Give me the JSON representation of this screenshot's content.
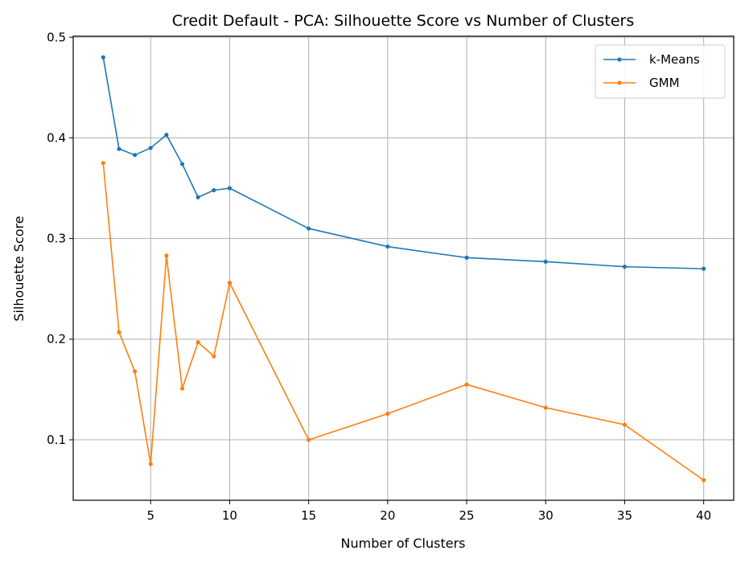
{
  "chart_data": {
    "type": "line",
    "title": "Credit Default - PCA: Silhouette Score vs Number of Clusters",
    "xlabel": "Number of Clusters",
    "ylabel": "Silhouette Score",
    "x": [
      2,
      3,
      4,
      5,
      6,
      7,
      8,
      9,
      10,
      15,
      20,
      25,
      30,
      35,
      40
    ],
    "xlim": [
      0.1,
      41.9
    ],
    "ylim": [
      0.04,
      0.501
    ],
    "xticks": [
      5,
      10,
      15,
      20,
      25,
      30,
      35,
      40
    ],
    "yticks": [
      0.1,
      0.2,
      0.3,
      0.4,
      0.5
    ],
    "ytick_labels": [
      "0.1",
      "0.2",
      "0.3",
      "0.4",
      "0.5"
    ],
    "grid": true,
    "legend_position": "top-right",
    "series": [
      {
        "name": "k-Means",
        "color": "#1f77b4",
        "values": [
          0.48,
          0.389,
          0.383,
          0.39,
          0.403,
          0.374,
          0.341,
          0.348,
          0.35,
          0.31,
          0.292,
          0.281,
          0.277,
          0.272,
          0.27
        ]
      },
      {
        "name": "GMM",
        "color": "#ff7f0e",
        "values": [
          0.375,
          0.207,
          0.168,
          0.076,
          0.283,
          0.151,
          0.197,
          0.183,
          0.256,
          0.1,
          0.126,
          0.155,
          0.132,
          0.115,
          0.06
        ]
      }
    ]
  }
}
